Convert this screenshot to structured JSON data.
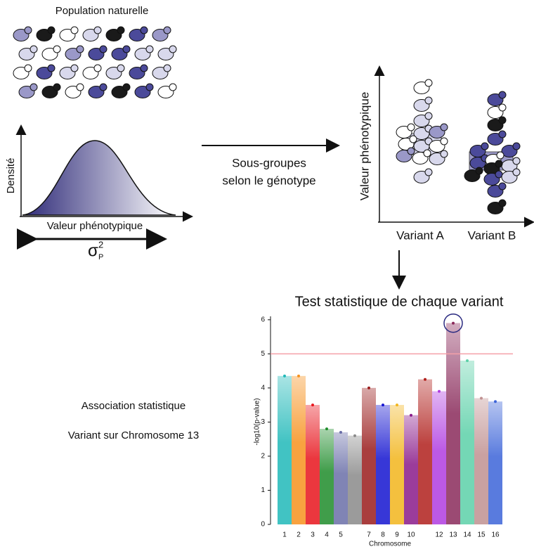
{
  "population": {
    "title": "Population naturelle"
  },
  "density": {
    "y_label": "Densité",
    "x_label": "Valeur phénotypique",
    "sigma": {
      "base": "σ",
      "sup": "2",
      "sub": "P"
    }
  },
  "arrow_label": {
    "line1": "Sous-groupes",
    "line2": "selon le génotype"
  },
  "subgroups": {
    "y_label": "Valeur phénotypique",
    "categories": [
      "Variant A",
      "Variant B"
    ]
  },
  "test": {
    "title": "Test statistique de chaque variant"
  },
  "association": {
    "line1": "Association statistique",
    "line2": "Variant sur Chromosome 13"
  },
  "chart_data": {
    "type": "manhattan",
    "x_label": "Chromosome",
    "y_label": "-log10(p-value)",
    "categories": [
      "1",
      "2",
      "3",
      "4",
      "5",
      null,
      "7",
      "8",
      "9",
      "10",
      null,
      "12",
      "13",
      "14",
      "15",
      "16"
    ],
    "values": [
      4.35,
      4.35,
      3.5,
      2.8,
      2.7,
      2.6,
      4.0,
      3.5,
      3.5,
      3.2,
      4.25,
      3.9,
      5.9,
      4.8,
      3.7,
      3.6
    ],
    "colors": [
      "#20b8b8",
      "#f7921e",
      "#e8141c",
      "#1e8c2a",
      "#6a6ea8",
      "#8a8a8a",
      "#9a1c1c",
      "#1414d0",
      "#f2b51c",
      "#8a1a8a",
      "#b0201c",
      "#b03ce0",
      "#8a2a5a",
      "#5cd0a8",
      "#c09090",
      "#3c64d8"
    ],
    "threshold": 5,
    "threshold_color": "#f4a0a8",
    "ylim": [
      0,
      6.1
    ],
    "yticks": [
      0,
      1,
      2,
      3,
      4,
      5,
      6
    ]
  }
}
